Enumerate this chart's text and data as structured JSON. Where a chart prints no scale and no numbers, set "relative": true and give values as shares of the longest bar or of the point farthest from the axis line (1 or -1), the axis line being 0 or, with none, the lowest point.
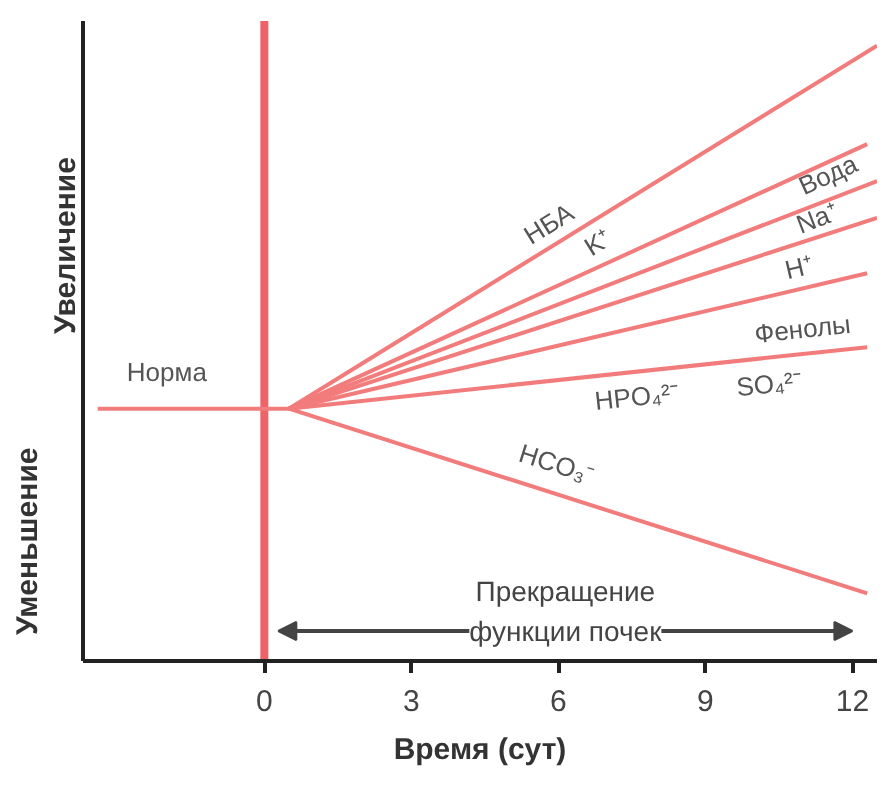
{
  "chart_data": {
    "type": "line",
    "relative": true,
    "xlabel": "Время (сут)",
    "xlim": [
      -3.7,
      12.5
    ],
    "xticks": [
      0,
      3,
      6,
      9,
      12
    ],
    "grid": false,
    "line_style": "solid",
    "series": [
      {
        "color": "#f27b7b",
        "x": [
          0.5,
          12.5
        ],
        "values": [
          0.41,
          1
        ]
      },
      {
        "color": "#f27b7b",
        "x": [
          0.5,
          12.3
        ],
        "values": [
          0.41,
          0.84
        ]
      },
      {
        "color": "#f27b7b",
        "x": [
          0.5,
          12.5
        ],
        "values": [
          0.41,
          0.78
        ]
      },
      {
        "color": "#f27b7b",
        "x": [
          0.5,
          12.5
        ],
        "values": [
          0.41,
          0.72
        ]
      },
      {
        "color": "#f27b7b",
        "x": [
          0.5,
          12.3
        ],
        "values": [
          0.41,
          0.63
        ]
      },
      {
        "color": "#f27b7b",
        "x": [
          -3.4,
          0.5,
          12.3
        ],
        "values": [
          0.41,
          0.41,
          0.51
        ]
      },
      {
        "color": "#f27b7b",
        "x": [
          0.5,
          12.3
        ],
        "values": [
          0.41,
          0.11
        ]
      }
    ],
    "ref_lines": [
      {
        "axis": "x",
        "value": 0,
        "color": "#ee6268"
      }
    ],
    "annotations": [
      "Увеличение",
      "Уменьшение",
      "Прекращение функции почек",
      "Норма",
      "НБА",
      "K⁺",
      "Вода",
      "Na⁺",
      "H⁺",
      "Фенолы",
      "HPO₄²⁻",
      "SO₄²⁻",
      "HCO₃⁻"
    ]
  }
}
